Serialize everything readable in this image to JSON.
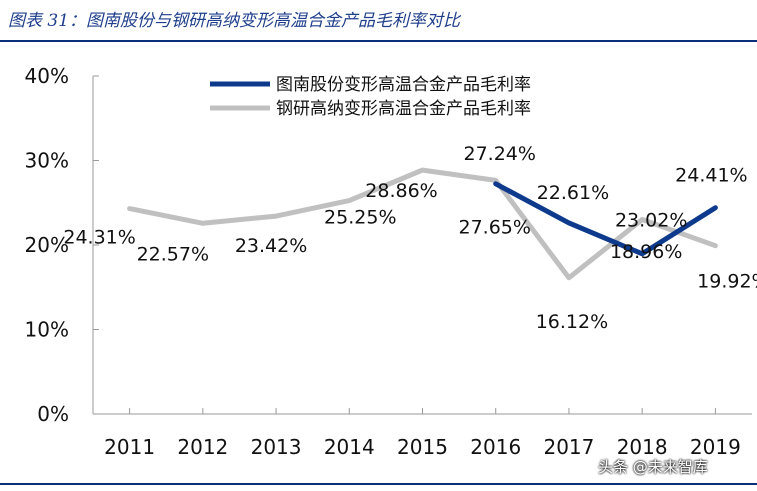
{
  "figure_title": "图表 31：图南股份与钢研高纳变形高温合金产品毛利率对比",
  "watermark": "头条 @未来智库",
  "colors": {
    "series_a": "#0d3a8c",
    "series_b": "#c0c0c0",
    "rule": "#0b2f7a"
  },
  "chart_data": {
    "type": "line",
    "title": "",
    "xlabel": "",
    "ylabel": "",
    "ylim": [
      0,
      40
    ],
    "yticks": [
      "0%",
      "10%",
      "20%",
      "30%",
      "40%"
    ],
    "yticks_values": [
      0,
      10,
      20,
      30,
      40
    ],
    "categories": [
      "2011",
      "2012",
      "2013",
      "2014",
      "2015",
      "2016",
      "2017",
      "2018",
      "2019"
    ],
    "legend_position": "top-right",
    "grid": false,
    "series": [
      {
        "name": "图南股份变形高温合金产品毛利率",
        "color": "#0d3a8c",
        "values": [
          null,
          null,
          null,
          null,
          null,
          27.24,
          22.61,
          18.96,
          24.41
        ],
        "labels": [
          "",
          "",
          "",
          "",
          "",
          "27.24%",
          "22.61%",
          "18.96%",
          "24.41%"
        ]
      },
      {
        "name": "钢研高纳变形高温合金产品毛利率",
        "color": "#c0c0c0",
        "values": [
          24.31,
          22.57,
          23.42,
          25.25,
          28.86,
          27.65,
          16.12,
          23.02,
          19.92
        ],
        "labels": [
          "24.31%",
          "22.57%",
          "23.42%",
          "25.25%",
          "28.86%",
          "27.65%",
          "16.12%",
          "23.02%",
          "19.92%"
        ]
      }
    ]
  }
}
